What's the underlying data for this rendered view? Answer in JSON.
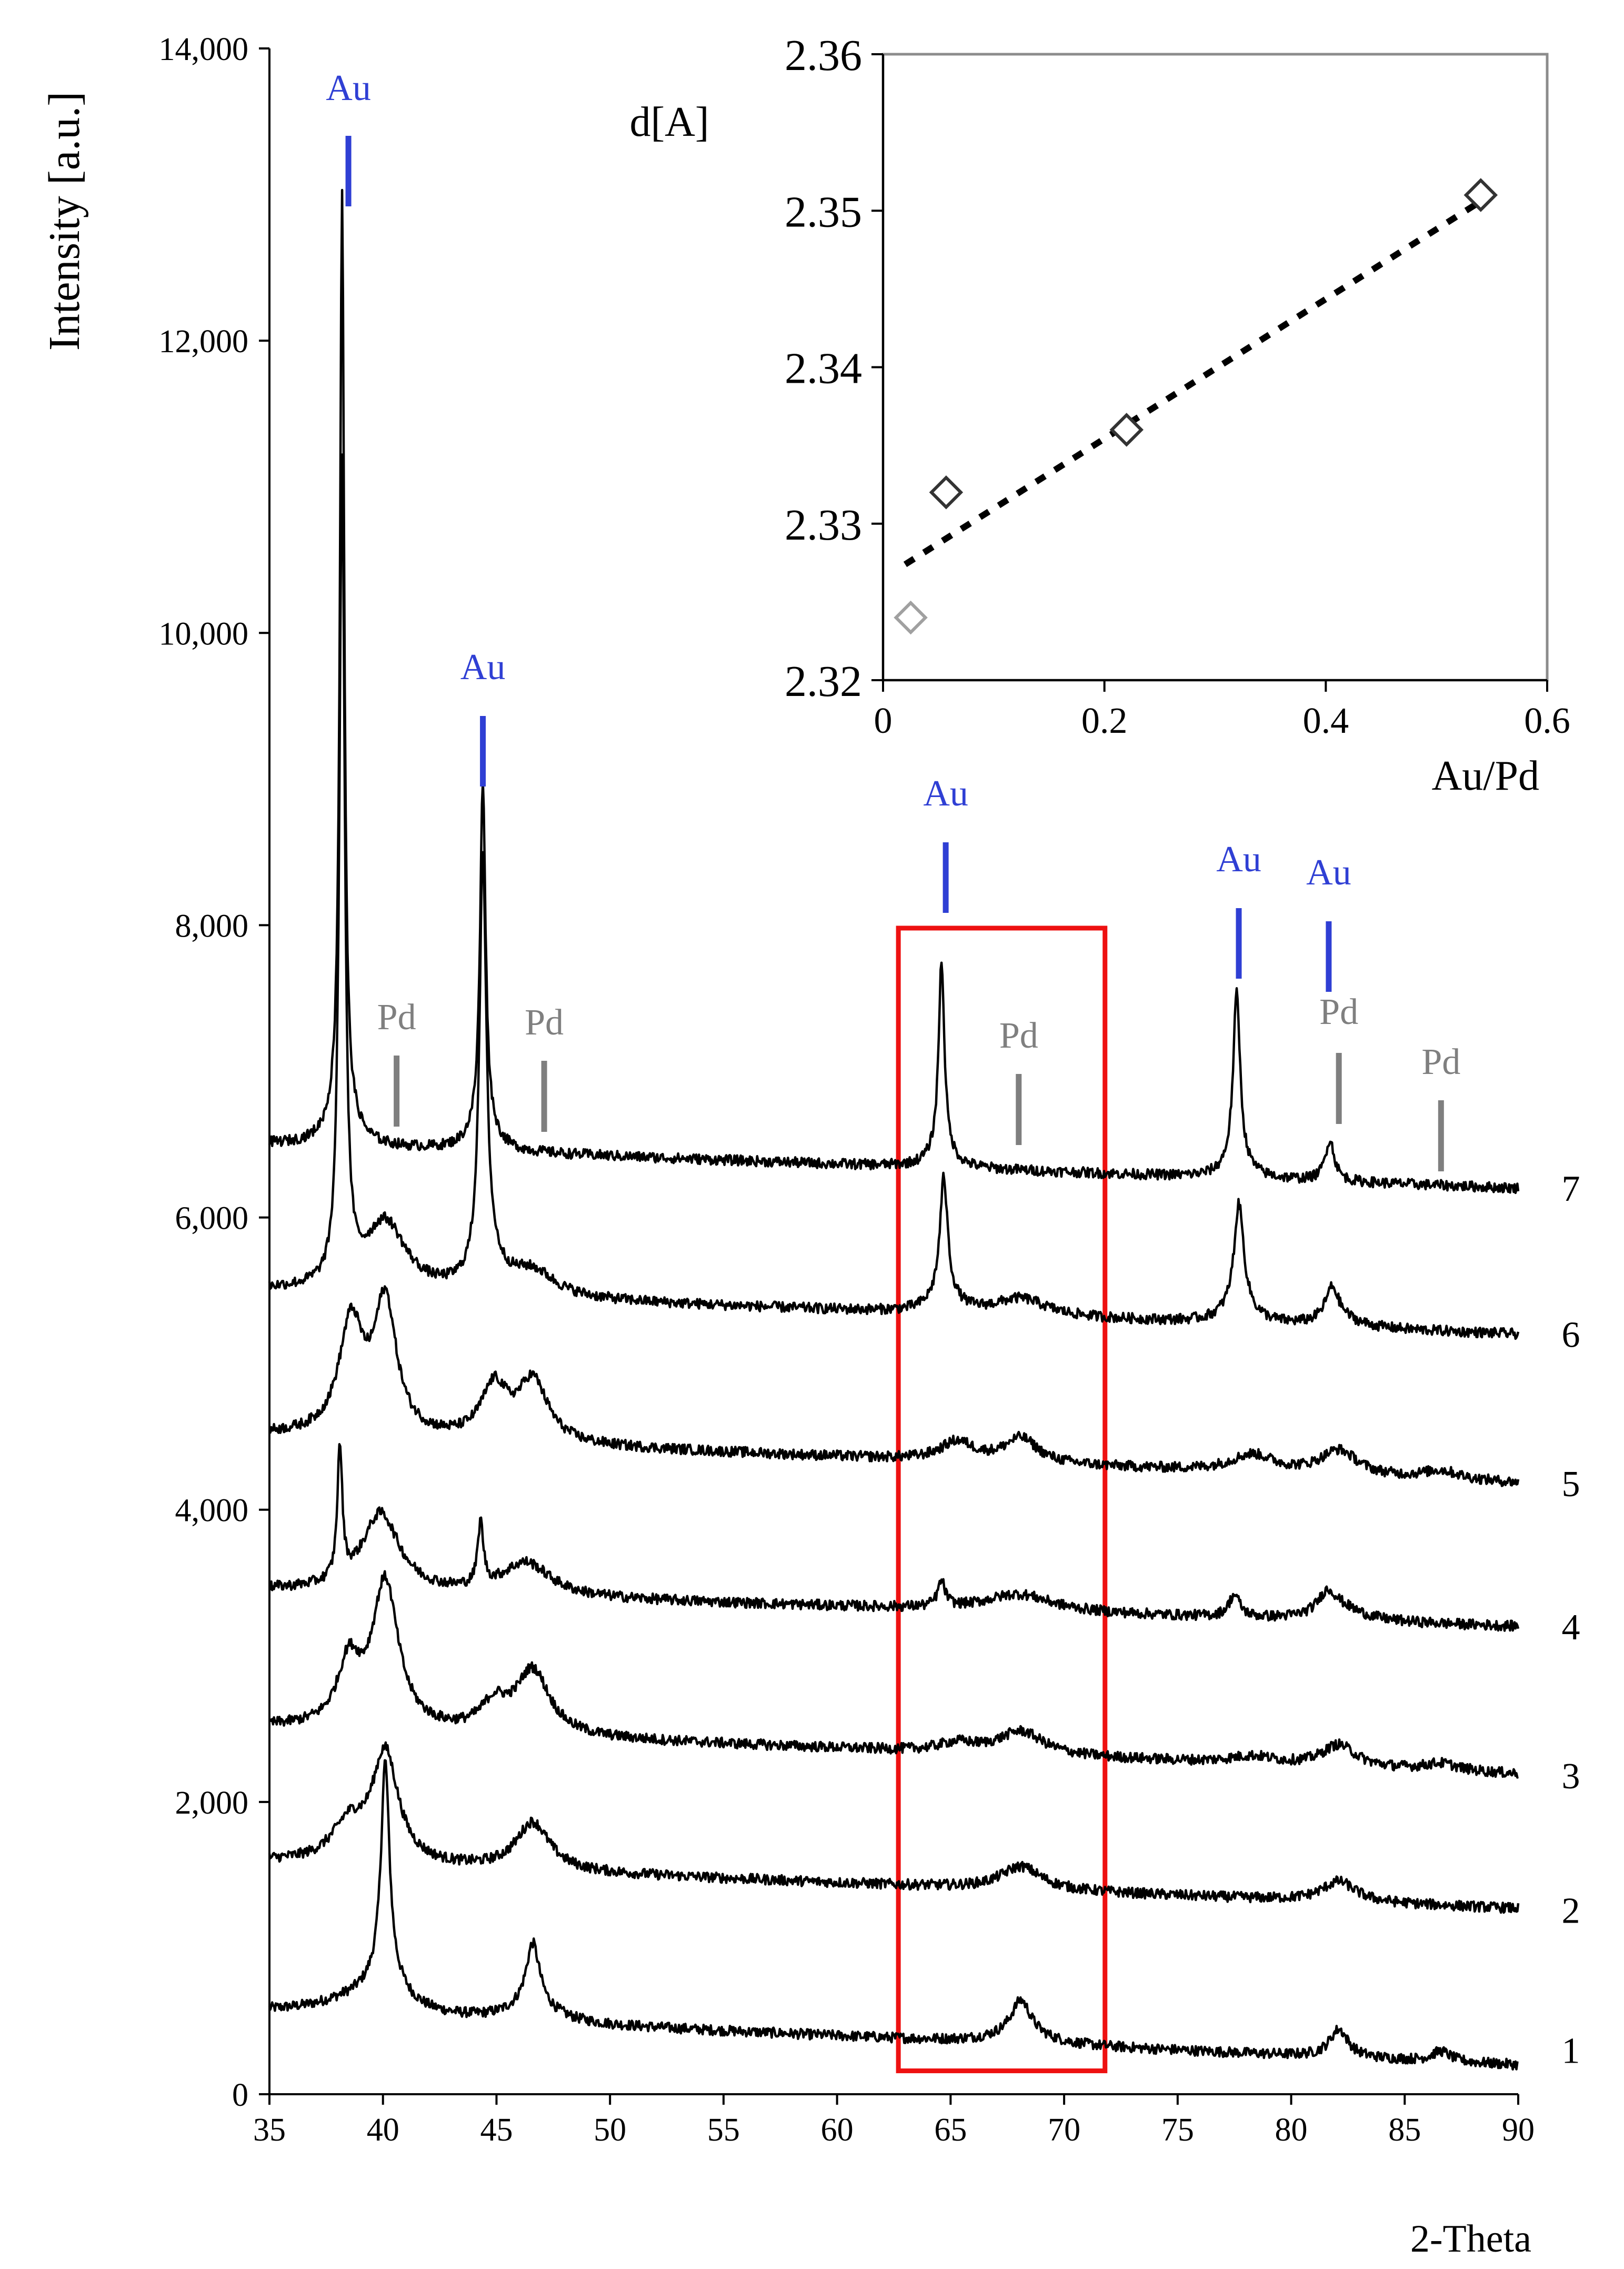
{
  "chart_data": [
    {
      "type": "line",
      "title": "",
      "xlabel": "2-Theta",
      "ylabel": "Intensity [a.u.]",
      "xlim": [
        35,
        90
      ],
      "ylim": [
        0,
        14000
      ],
      "x_ticks": [
        "35",
        "40",
        "45",
        "50",
        "55",
        "60",
        "65",
        "70",
        "75",
        "80",
        "85",
        "90"
      ],
      "y_ticks": [
        "0",
        "2,000",
        "4,000",
        "6,000",
        "8,000",
        "10,000",
        "12,000",
        "14,000"
      ],
      "grid": false,
      "legend": "none",
      "series": [
        {
          "name": "1",
          "offset": 300
        },
        {
          "name": "2",
          "offset": 1260
        },
        {
          "name": "3",
          "offset": 2180
        },
        {
          "name": "4",
          "offset": 3200
        },
        {
          "name": "5",
          "offset": 4180
        },
        {
          "name": "6",
          "offset": 5200
        },
        {
          "name": "7",
          "offset": 6200
        }
      ],
      "peak_markers": {
        "au_color": "#2f3fd4",
        "pd_color": "#7f7f7f",
        "au": [
          {
            "label": "Au",
            "x": 38.2
          },
          {
            "label": "Au",
            "x": 44.4
          },
          {
            "label": "Au",
            "x": 64.6
          },
          {
            "label": "Au",
            "x": 77.6
          },
          {
            "label": "Au",
            "x": 81.7
          }
        ],
        "pd": [
          {
            "label": "Pd",
            "x": 40.6
          },
          {
            "label": "Pd",
            "x": 47.1
          },
          {
            "label": "Pd",
            "x": 68.0
          },
          {
            "label": "Pd",
            "x": 82.1
          },
          {
            "label": "Pd",
            "x": 86.6
          }
        ]
      },
      "highlight_box": {
        "x_range": [
          62.7,
          71.8
        ],
        "y_range": [
          160,
          7980
        ],
        "color": "#ee1111"
      }
    },
    {
      "type": "scatter",
      "title": "",
      "xlabel": "Au/Pd",
      "ylabel": "d[A]",
      "xlim": [
        0,
        0.6
      ],
      "ylim": [
        2.32,
        2.36
      ],
      "x_ticks": [
        "0",
        "0.2",
        "0.4",
        "0.6"
      ],
      "y_ticks": [
        "2.32",
        "2.33",
        "2.34",
        "2.35",
        "2.36"
      ],
      "points": [
        {
          "x": 0.025,
          "y": 2.324,
          "color": "#a0a0a0"
        },
        {
          "x": 0.057,
          "y": 2.332,
          "color": "#333333"
        },
        {
          "x": 0.22,
          "y": 2.336,
          "color": "#333333"
        },
        {
          "x": 0.54,
          "y": 2.351,
          "color": "#333333"
        }
      ],
      "trendline": {
        "x": [
          0.02,
          0.54
        ],
        "y": [
          2.3274,
          2.3506
        ],
        "style": "dotted"
      }
    }
  ]
}
